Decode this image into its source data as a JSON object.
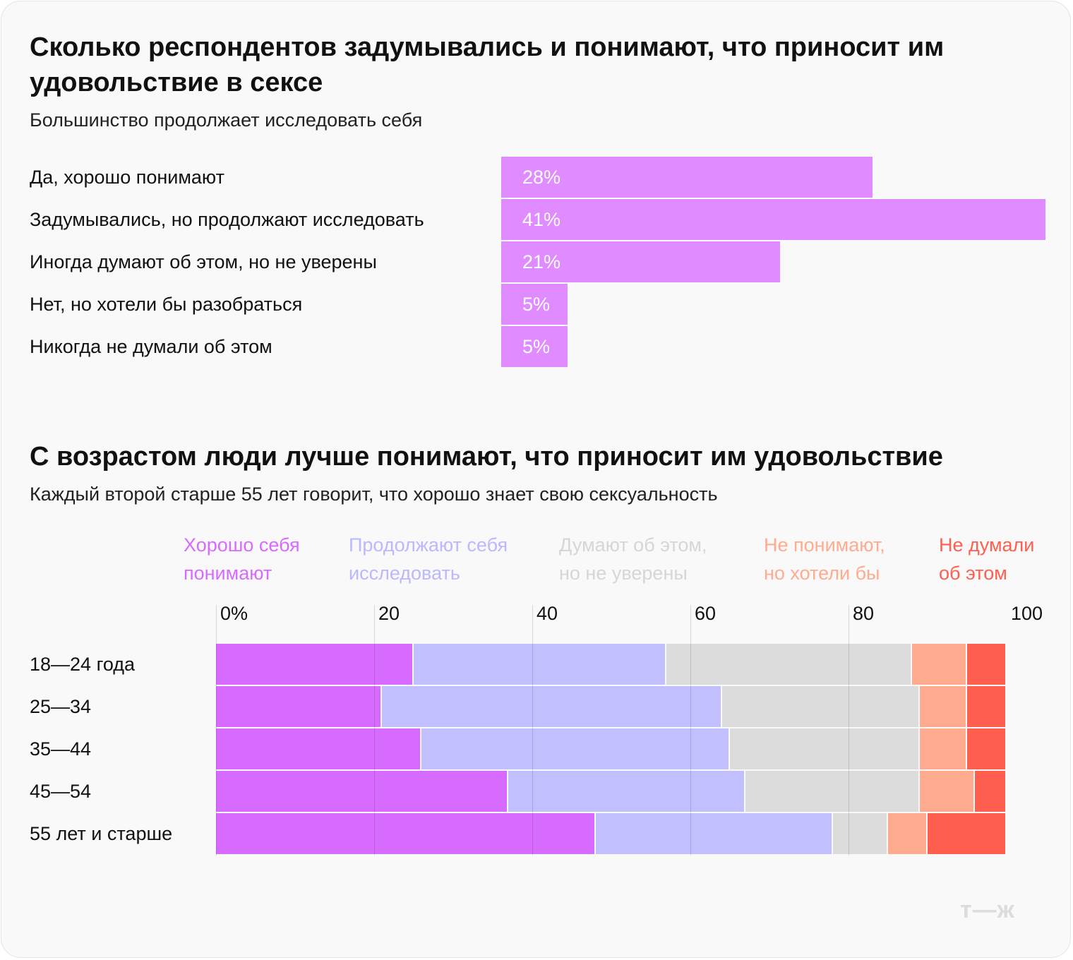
{
  "chart_data": [
    {
      "type": "bar",
      "title": "Сколько респондентов задумывались и понимают, что приносит им удовольствие в сексе",
      "subtitle": "Большинство продолжает исследовать себя",
      "categories": [
        "Да, хорошо понимают",
        "Задумывались, но продолжают исследовать",
        "Иногда думают об этом, но не уверены",
        "Нет, но хотели бы разобраться",
        "Никогда не думали об этом"
      ],
      "values": [
        28,
        41,
        21,
        5,
        5
      ],
      "value_labels": [
        "28%",
        "41%",
        "21%",
        "5%",
        "5%"
      ],
      "color": "#e08bff",
      "orientation": "horizontal"
    },
    {
      "type": "bar",
      "stacked": true,
      "orientation": "horizontal",
      "title": "С возрастом люди лучше понимают, что приносит им удовольствие",
      "subtitle": "Каждый второй старше 55 лет говорит, что хорошо знает свою сексуальность",
      "categories": [
        "18—24 года",
        "25—34",
        "35—44",
        "45—54",
        "55 лет и старше"
      ],
      "xlim": [
        0,
        100
      ],
      "ticks": [
        "0%",
        "20",
        "40",
        "60",
        "80",
        "100"
      ],
      "grid": true,
      "legend_position": "top",
      "series": [
        {
          "name": "Хорошо себя понимают",
          "color": "#d86bff",
          "values": [
            25,
            21,
            26,
            37,
            48
          ]
        },
        {
          "name": "Продолжают себя исследовать",
          "color": "#c2bfff",
          "values": [
            32,
            43,
            39,
            30,
            30
          ]
        },
        {
          "name": "Думают об этом, но не уверены",
          "color": "#dcdcdc",
          "values": [
            31,
            25,
            24,
            22,
            7
          ]
        },
        {
          "name": "Не понимают, но хотели бы",
          "color": "#ffab8f",
          "values": [
            7,
            6,
            6,
            7,
            5
          ]
        },
        {
          "name": "Не думали об этом",
          "color": "#ff5f4f",
          "values": [
            5,
            5,
            5,
            4,
            10
          ]
        }
      ],
      "legend_text_colors": [
        "#d86bff",
        "#bcb8ff",
        "#d6d6d6",
        "#ffab8f",
        "#ff5f4f"
      ]
    }
  ],
  "logo": "т—ж"
}
